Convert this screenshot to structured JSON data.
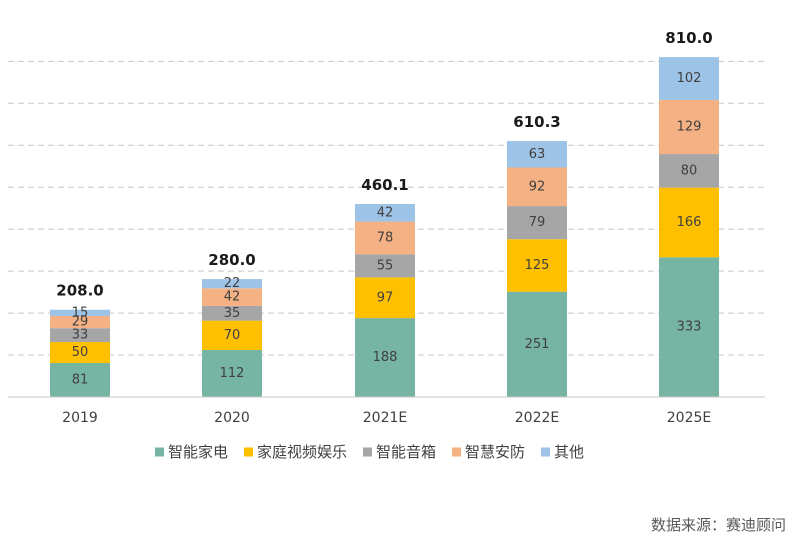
{
  "chart_data": {
    "type": "bar",
    "stacked": true,
    "categories": [
      "2019",
      "2020",
      "2021E",
      "2022E",
      "2025E"
    ],
    "series": [
      {
        "name": "智能家电",
        "color": "#76b4a4",
        "values": [
          81,
          112,
          188,
          251,
          333
        ]
      },
      {
        "name": "家庭视频娱乐",
        "color": "#ffc000",
        "values": [
          50,
          70,
          97,
          125,
          166
        ]
      },
      {
        "name": "智能音箱",
        "color": "#a6a6a6",
        "values": [
          33,
          35,
          55,
          79,
          80
        ]
      },
      {
        "name": "智慧安防",
        "color": "#f4b183",
        "values": [
          29,
          42,
          78,
          92,
          129
        ]
      },
      {
        "name": "其他",
        "color": "#9dc3e6",
        "values": [
          15,
          22,
          42,
          63,
          102
        ]
      }
    ],
    "totals": [
      "208.0",
      "280.0",
      "460.1",
      "610.3",
      "810.0"
    ],
    "ylim": [
      0,
      800
    ],
    "grid": true,
    "legend_position": "bottom"
  },
  "source": "数据来源：赛迪顾问"
}
